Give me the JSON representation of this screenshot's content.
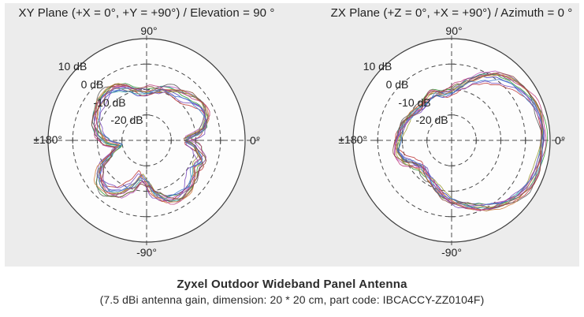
{
  "page": {
    "background": "#ffffff",
    "panel_background": "#ececec",
    "grid_color": "#454545",
    "text_color": "#1f1f1f"
  },
  "caption": {
    "title": "Zyxel Outdoor Wideband Panel Antenna",
    "subtitle": "(7.5 dBi antenna gain, dimension: 20 * 20 cm, part code: IBCACCY-ZZ0104F)"
  },
  "chart_data": [
    {
      "type": "line",
      "polar": true,
      "title": "XY Plane (+X = 0°, +Y = +90°) / Elevation = 90 °",
      "angle_labels": {
        "top": "90°",
        "right": "0°",
        "left": "±180°",
        "bottom": "-90°"
      },
      "radial_tick_labels": [
        "10 dB",
        "0 dB",
        "-10 dB",
        "-20 dB"
      ],
      "radial_ticks_db": [
        10,
        0,
        -10,
        -20
      ],
      "rlim_db": [
        -30,
        10
      ],
      "grid": "dashed-rings-and-crosshair",
      "legend": "none",
      "angles_deg": [
        0,
        10,
        20,
        30,
        40,
        50,
        60,
        70,
        80,
        90,
        100,
        110,
        120,
        130,
        140,
        150,
        160,
        170,
        180,
        190,
        200,
        210,
        220,
        230,
        240,
        250,
        260,
        270,
        280,
        290,
        300,
        310,
        320,
        330,
        340,
        350
      ],
      "mean_gain_db": [
        -14,
        -7,
        -4.5,
        -4,
        -5.5,
        -7,
        -7.5,
        -8,
        -9.5,
        -10.5,
        -10.5,
        -8.5,
        -6.5,
        -5.5,
        -5.5,
        -6.5,
        -8,
        -10,
        -13,
        -19,
        -15,
        -8,
        -5,
        -4.5,
        -6,
        -10,
        -15,
        -13,
        -8,
        -5,
        -4,
        -4.5,
        -6,
        -8,
        -6,
        -9
      ],
      "traces": {
        "count": 12,
        "spread_db": 2.0,
        "colors": [
          "#3b3bbf",
          "#bf3b3b",
          "#3b9e3b",
          "#2e9e9e",
          "#bf5bbf",
          "#9e9e3b",
          "#5e5e5e",
          "#7b4bbf",
          "#cf8040",
          "#bf4080",
          "#4080cf",
          "#8b4b3b"
        ]
      }
    },
    {
      "type": "line",
      "polar": true,
      "title": "ZX Plane (+Z = 0°, +X = +90°) / Azimuth = 0 °",
      "angle_labels": {
        "top": "90°",
        "right": "0°",
        "left": "±180°",
        "bottom": "-90°"
      },
      "radial_tick_labels": [
        "10 dB",
        "0 dB",
        "-10 dB",
        "-20 dB"
      ],
      "radial_ticks_db": [
        10,
        0,
        -10,
        -20
      ],
      "rlim_db": [
        -30,
        10
      ],
      "grid": "dashed-rings-and-crosshair",
      "legend": "none",
      "angles_deg": [
        0,
        10,
        20,
        30,
        40,
        50,
        60,
        70,
        80,
        90,
        100,
        110,
        120,
        130,
        140,
        150,
        160,
        170,
        180,
        190,
        200,
        210,
        220,
        230,
        240,
        250,
        260,
        270,
        280,
        290,
        300,
        310,
        320,
        330,
        340,
        350
      ],
      "mean_gain_db": [
        7.2,
        7,
        6.5,
        5.5,
        4,
        2,
        -1,
        -4.5,
        -8,
        -10.5,
        -11.5,
        -10.5,
        -11.5,
        -12.5,
        -11.5,
        -10.5,
        -9.5,
        -9,
        -8,
        -7.5,
        -9,
        -12,
        -14,
        -13.5,
        -12,
        -10,
        -8,
        -6,
        -4,
        -2,
        0.5,
        2.5,
        4.5,
        5.8,
        6.6,
        7
      ],
      "traces": {
        "count": 12,
        "spread_db": 1.6,
        "colors": [
          "#3b3bbf",
          "#bf3b3b",
          "#3b9e3b",
          "#2e9e9e",
          "#bf5bbf",
          "#9e9e3b",
          "#5e5e5e",
          "#7b4bbf",
          "#cf8040",
          "#bf4080",
          "#4080cf",
          "#8b4b3b"
        ]
      }
    }
  ]
}
